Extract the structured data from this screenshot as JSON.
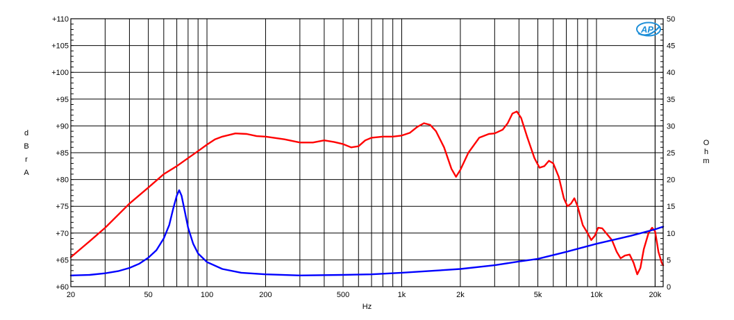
{
  "chart_data": {
    "type": "line",
    "x_scale": "log",
    "xlabel": "Hz",
    "ylabel_left": [
      "d",
      "B",
      "r",
      "A"
    ],
    "ylabel_right": [
      "O",
      "h",
      "m"
    ],
    "xlim": [
      20,
      22000
    ],
    "ylim_left": [
      60,
      110
    ],
    "ylim_right": [
      0,
      50
    ],
    "grid": true,
    "x_ticks": [
      {
        "value": 20,
        "label": "20"
      },
      {
        "value": 50,
        "label": "50"
      },
      {
        "value": 100,
        "label": "100"
      },
      {
        "value": 200,
        "label": "200"
      },
      {
        "value": 500,
        "label": "500"
      },
      {
        "value": 1000,
        "label": "1k"
      },
      {
        "value": 2000,
        "label": "2k"
      },
      {
        "value": 5000,
        "label": "5k"
      },
      {
        "value": 10000,
        "label": "10k"
      },
      {
        "value": 20000,
        "label": "20k"
      }
    ],
    "y_left_ticks": [
      "+60",
      "+65",
      "+70",
      "+75",
      "+80",
      "+85",
      "+90",
      "+95",
      "+100",
      "+105",
      "+110"
    ],
    "y_right_ticks": [
      "0",
      "5",
      "10",
      "15",
      "20",
      "25",
      "30",
      "35",
      "40",
      "45",
      "50"
    ],
    "series": [
      {
        "axis": "left",
        "color": "#ff0000",
        "points": [
          [
            20,
            65.5
          ],
          [
            25,
            68.5
          ],
          [
            30,
            71
          ],
          [
            40,
            75.5
          ],
          [
            50,
            78.5
          ],
          [
            60,
            81
          ],
          [
            70,
            82.5
          ],
          [
            80,
            84
          ],
          [
            90,
            85.3
          ],
          [
            100,
            86.5
          ],
          [
            110,
            87.5
          ],
          [
            120,
            88
          ],
          [
            140,
            88.6
          ],
          [
            160,
            88.5
          ],
          [
            180,
            88.1
          ],
          [
            200,
            88
          ],
          [
            250,
            87.5
          ],
          [
            300,
            86.9
          ],
          [
            350,
            86.9
          ],
          [
            400,
            87.3
          ],
          [
            450,
            87
          ],
          [
            500,
            86.6
          ],
          [
            550,
            86
          ],
          [
            600,
            86.2
          ],
          [
            650,
            87.3
          ],
          [
            700,
            87.8
          ],
          [
            800,
            88
          ],
          [
            900,
            88
          ],
          [
            1000,
            88.2
          ],
          [
            1100,
            88.7
          ],
          [
            1200,
            89.8
          ],
          [
            1300,
            90.5
          ],
          [
            1400,
            90.2
          ],
          [
            1500,
            89
          ],
          [
            1650,
            86
          ],
          [
            1800,
            82
          ],
          [
            1900,
            80.5
          ],
          [
            2000,
            81.8
          ],
          [
            2200,
            85
          ],
          [
            2500,
            87.8
          ],
          [
            2800,
            88.5
          ],
          [
            3000,
            88.6
          ],
          [
            3300,
            89.3
          ],
          [
            3500,
            90.5
          ],
          [
            3700,
            92.3
          ],
          [
            3900,
            92.7
          ],
          [
            4100,
            91.5
          ],
          [
            4400,
            88
          ],
          [
            4800,
            84
          ],
          [
            5100,
            82.2
          ],
          [
            5400,
            82.5
          ],
          [
            5700,
            83.5
          ],
          [
            6000,
            83
          ],
          [
            6400,
            80.5
          ],
          [
            6800,
            76.5
          ],
          [
            7100,
            75
          ],
          [
            7400,
            75.5
          ],
          [
            7700,
            76.5
          ],
          [
            8000,
            75
          ],
          [
            8500,
            71.5
          ],
          [
            9000,
            70
          ],
          [
            9400,
            68.7
          ],
          [
            9800,
            69.5
          ],
          [
            10200,
            71
          ],
          [
            10700,
            70.9
          ],
          [
            11200,
            70
          ],
          [
            12000,
            68.7
          ],
          [
            12700,
            66.5
          ],
          [
            13300,
            65.3
          ],
          [
            14000,
            65.8
          ],
          [
            14800,
            66
          ],
          [
            15500,
            64.5
          ],
          [
            16200,
            62.3
          ],
          [
            16800,
            63.5
          ],
          [
            17500,
            67
          ],
          [
            18500,
            70
          ],
          [
            19300,
            71
          ],
          [
            20000,
            70.3
          ],
          [
            20800,
            66.5
          ],
          [
            21600,
            64.5
          ],
          [
            22000,
            64
          ]
        ]
      },
      {
        "axis": "right",
        "color": "#0000ff",
        "points": [
          [
            20,
            2.1
          ],
          [
            25,
            2.2
          ],
          [
            30,
            2.5
          ],
          [
            35,
            2.9
          ],
          [
            40,
            3.5
          ],
          [
            45,
            4.3
          ],
          [
            50,
            5.4
          ],
          [
            55,
            6.8
          ],
          [
            60,
            9
          ],
          [
            64,
            11.5
          ],
          [
            67,
            14.5
          ],
          [
            70,
            17
          ],
          [
            72,
            18
          ],
          [
            74,
            17
          ],
          [
            77,
            14
          ],
          [
            80,
            11
          ],
          [
            85,
            8
          ],
          [
            90,
            6.2
          ],
          [
            100,
            4.6
          ],
          [
            120,
            3.3
          ],
          [
            150,
            2.6
          ],
          [
            200,
            2.3
          ],
          [
            300,
            2.1
          ],
          [
            500,
            2.2
          ],
          [
            700,
            2.3
          ],
          [
            1000,
            2.6
          ],
          [
            1500,
            3
          ],
          [
            2000,
            3.3
          ],
          [
            3000,
            4
          ],
          [
            4000,
            4.7
          ],
          [
            5000,
            5.2
          ],
          [
            7000,
            6.5
          ],
          [
            10000,
            8
          ],
          [
            15000,
            9.5
          ],
          [
            20000,
            10.7
          ],
          [
            22000,
            11.2
          ]
        ]
      }
    ]
  }
}
